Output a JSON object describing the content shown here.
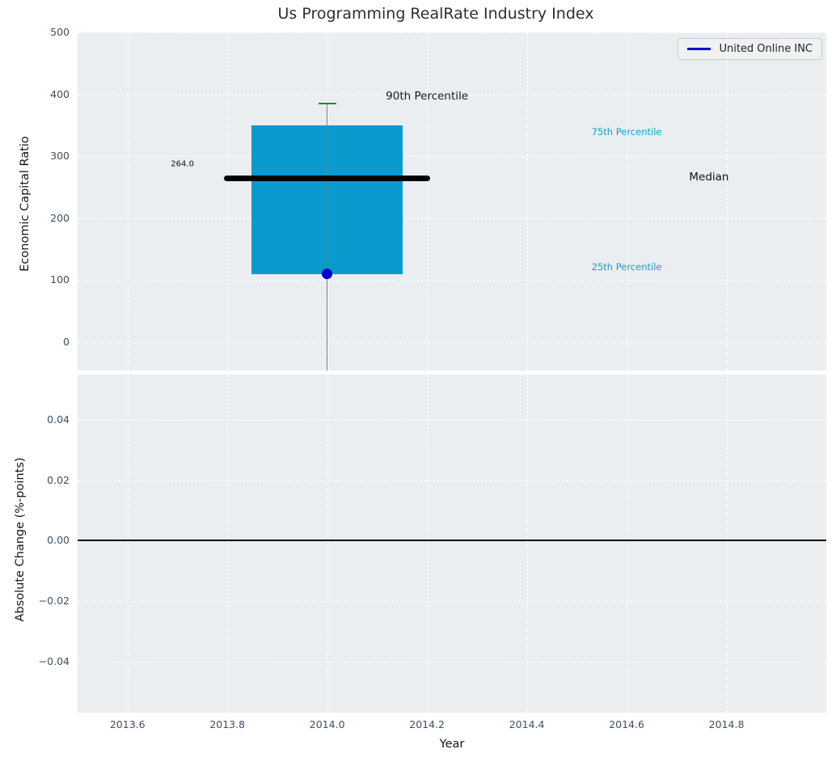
{
  "title": "Us Programming RealRate Industry Index",
  "colors": {
    "axes_background": "#eaeef0",
    "grid": "#ffffff",
    "tick_label": "#3d5065",
    "title": "#2e2e2e",
    "accent_cyan": "#0a9bce",
    "accent_blue": "#0000e0"
  },
  "legend": {
    "label": "United Online INC",
    "line_color": "#0000e0",
    "position": "upper right"
  },
  "chart_data": [
    {
      "type": "box",
      "title": "Us Programming RealRate Industry Index",
      "ylabel": "Economic Capital Ratio",
      "xlim": [
        2013.5,
        2015.0
      ],
      "ylim": [
        -46,
        500
      ],
      "grid": true,
      "yticks": [
        {
          "v": 500,
          "label": "500"
        },
        {
          "v": 400,
          "label": "400"
        },
        {
          "v": 300,
          "label": "300"
        },
        {
          "v": 200,
          "label": "200"
        },
        {
          "v": 100,
          "label": "100"
        },
        {
          "v": 0,
          "label": "0"
        }
      ],
      "grid_x": [
        2013.6,
        2013.8,
        2014.0,
        2014.2,
        2014.4,
        2014.6,
        2014.8
      ],
      "box": {
        "x": 2014.0,
        "p90": 385,
        "q3": 350,
        "median": 264,
        "q1": 110,
        "company_value": 110,
        "median_value_label": "264.0",
        "box_half_width": 0.151,
        "median_half_width": 0.206,
        "cap_half_width": 0.018,
        "colors": {
          "box_fill": "#0a9bce",
          "median_line": "#000000",
          "cap": "#1e8c1e",
          "whisker": "#7a7a7a",
          "company_point": "#0000cd"
        }
      },
      "annotations": [
        {
          "text": "90th Percentile",
          "x": 2014.2,
          "y": 397,
          "color": "#1a1a1a",
          "size": 13.5
        },
        {
          "text": "75th Percentile",
          "x": 2014.6,
          "y": 339,
          "color": "#189fd0",
          "size": 11.5
        },
        {
          "text": "Median",
          "x": 2014.765,
          "y": 266,
          "color": "#111111",
          "size": 13.5
        },
        {
          "text": "25th Percentile",
          "x": 2014.6,
          "y": 121,
          "color": "#189fd0",
          "size": 11.5
        },
        {
          "text": "264.0",
          "x": 2013.71,
          "y": 287,
          "color": "#111111",
          "size": 10
        }
      ]
    },
    {
      "type": "line",
      "ylabel": "Absolute Change (%-points)",
      "xlabel": "Year",
      "xlim": [
        2013.5,
        2015.0
      ],
      "ylim": [
        -0.057,
        0.055
      ],
      "grid": true,
      "zero_line_y": 0.0,
      "yticks": [
        {
          "v": 0.04,
          "label": "0.04"
        },
        {
          "v": 0.02,
          "label": "0.02"
        },
        {
          "v": 0.0,
          "label": "0.00"
        },
        {
          "v": -0.02,
          "label": "−0.02"
        },
        {
          "v": -0.04,
          "label": "−0.04"
        }
      ],
      "xticks": [
        {
          "v": 2013.6,
          "label": "2013.6"
        },
        {
          "v": 2013.8,
          "label": "2013.8"
        },
        {
          "v": 2014.0,
          "label": "2014.0"
        },
        {
          "v": 2014.2,
          "label": "2014.2"
        },
        {
          "v": 2014.4,
          "label": "2014.4"
        },
        {
          "v": 2014.6,
          "label": "2014.6"
        },
        {
          "v": 2014.8,
          "label": "2014.8"
        }
      ]
    }
  ]
}
